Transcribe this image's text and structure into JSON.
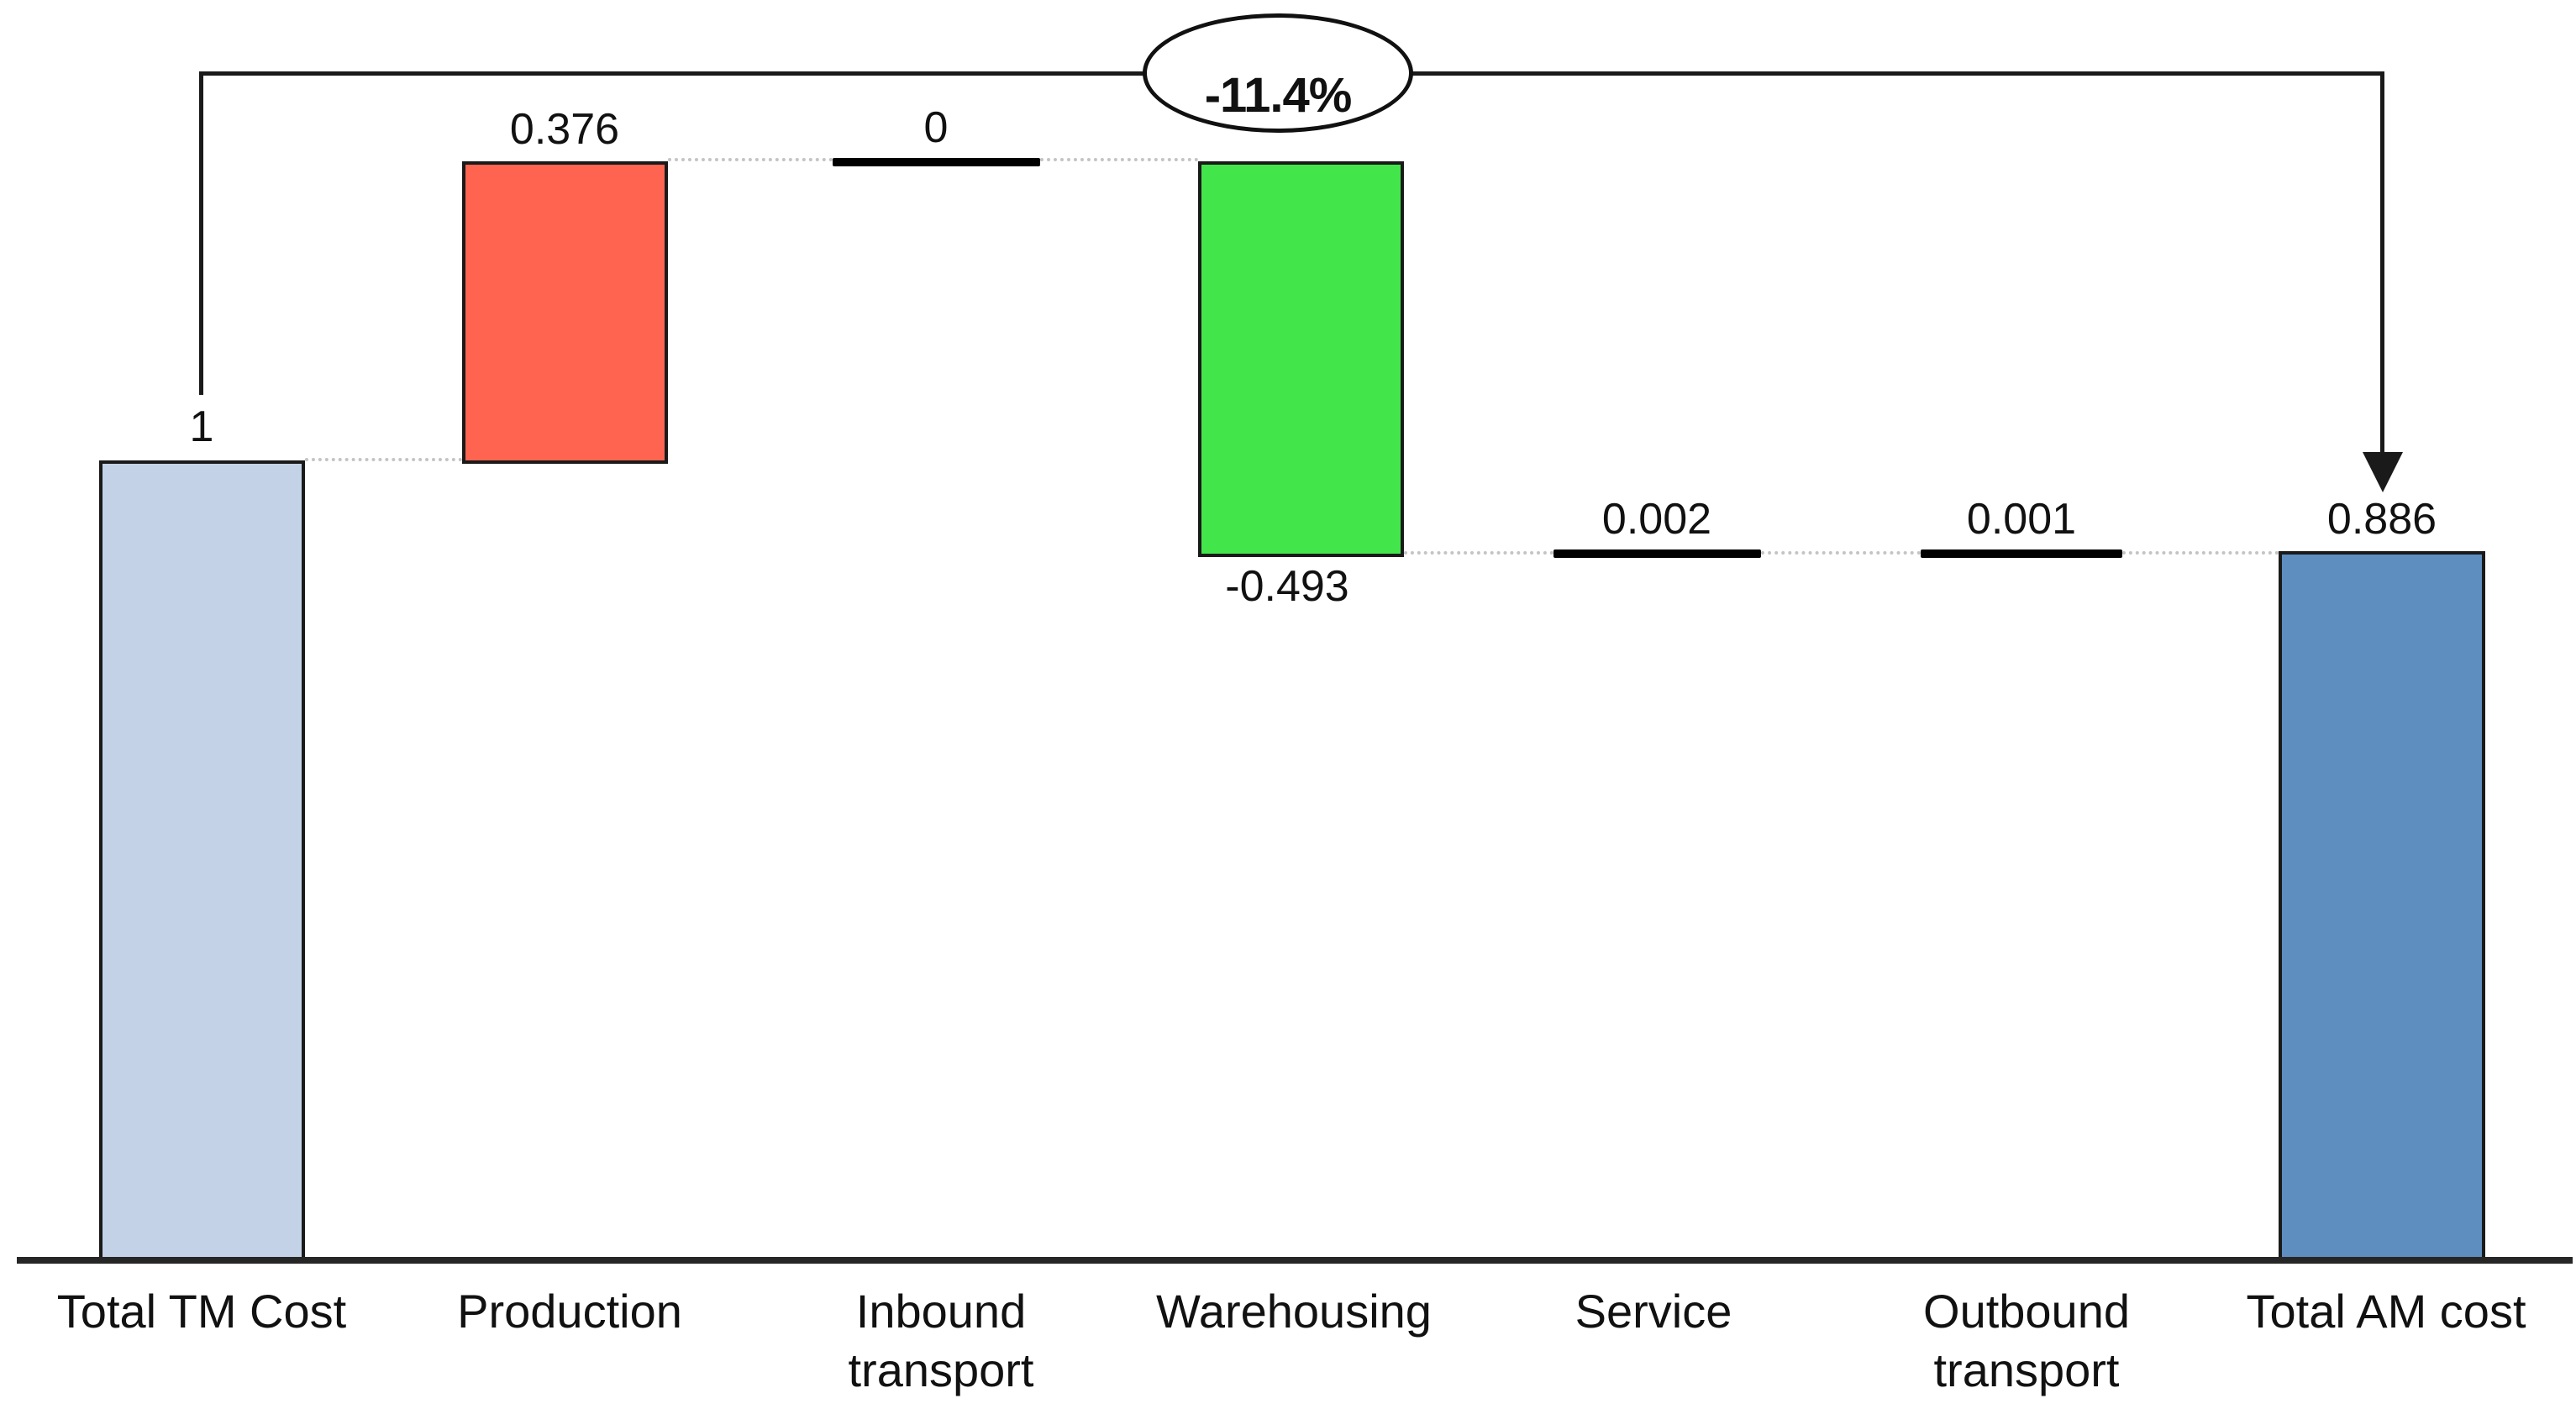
{
  "chart_data": {
    "type": "bar",
    "subtype": "waterfall",
    "title": "",
    "categories": [
      "Total TM Cost",
      "Production",
      "Inbound transport",
      "Warehousing",
      "Service",
      "Outbound transport",
      "Total AM cost"
    ],
    "category_lines": [
      [
        "Total TM Cost"
      ],
      [
        "Production"
      ],
      [
        "Inbound",
        "transport"
      ],
      [
        "Warehousing"
      ],
      [
        "Service"
      ],
      [
        "Outbound",
        "transport"
      ],
      [
        "Total AM cost"
      ]
    ],
    "values": [
      1.0,
      0.376,
      0,
      -0.493,
      0.002,
      0.001,
      0.886
    ],
    "value_labels": [
      "1",
      "0.376",
      "0",
      "-0.493",
      "0.002",
      "0.001",
      "0.886"
    ],
    "bar_kinds": [
      "total-start",
      "increase",
      "zero-line",
      "decrease",
      "tiny-line",
      "tiny-line",
      "total-end"
    ],
    "annotation": "-11.4%",
    "xlabel": "",
    "ylabel": "",
    "ylim": [
      0,
      1.376
    ],
    "axis": {
      "x_baseline_visible": true,
      "y_axis_visible": false,
      "gridlines": false
    },
    "legend": {
      "visible": false
    },
    "colors": {
      "total_tm_bar": "#c3d2e7",
      "production_bar": "#fe6450",
      "warehousing_bar": "#42e64a",
      "total_am_bar": "#5e8ec0",
      "zero_value_line": "#000000",
      "connector_dots": "#c4c4c4",
      "bracket_line": "#1a1a1a",
      "text": "#111111"
    }
  }
}
